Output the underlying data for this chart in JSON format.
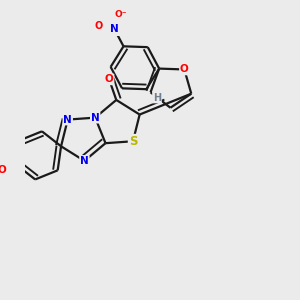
{
  "bg_color": "#ebebeb",
  "bond_color": "#1a1a1a",
  "atoms": {
    "S": {
      "color": "#b8b800"
    },
    "O": {
      "color": "#ff0000"
    },
    "N": {
      "color": "#0000ee"
    },
    "H": {
      "color": "#708090"
    },
    "Np": {
      "color": "#0000ee"
    },
    "Op": {
      "color": "#ff0000"
    }
  },
  "figsize": [
    3.0,
    3.0
  ],
  "dpi": 100
}
